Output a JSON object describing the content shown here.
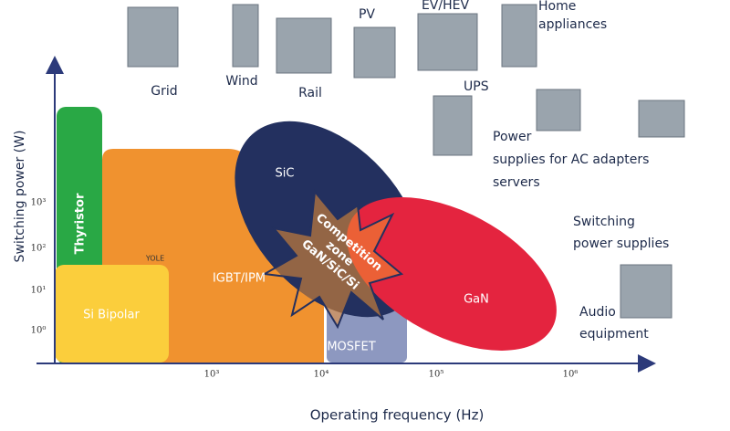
{
  "axes": {
    "y_label": "Switching power (W)",
    "x_label": "Operating frequency (Hz)",
    "y_ticks": [
      "10³",
      "10²",
      "10¹",
      "10⁰"
    ],
    "x_ticks": [
      "10³",
      "10⁴",
      "10⁵",
      "10⁶"
    ]
  },
  "regions": {
    "thyristor": "Thyristor",
    "si_bipolar": "Si Bipolar",
    "igbt": "IGBT/IPM",
    "mosfet": "MOSFET",
    "sic": "SiC",
    "gan": "GaN",
    "competition": [
      "Competition",
      "zone",
      "GaN/SiC/Si"
    ],
    "logo": "YOLE"
  },
  "applications": {
    "grid": "Grid",
    "wind": "Wind",
    "rail": "Rail",
    "pv": "PV",
    "ev": "EV/HEV",
    "home": [
      "Home",
      "appliances"
    ],
    "ups": "UPS",
    "power_supplies": [
      "Power",
      "supplies for  AC adapters",
      "servers"
    ],
    "switching": [
      "Switching",
      "power supplies"
    ],
    "audio": [
      "Audio",
      "equipment"
    ]
  }
}
